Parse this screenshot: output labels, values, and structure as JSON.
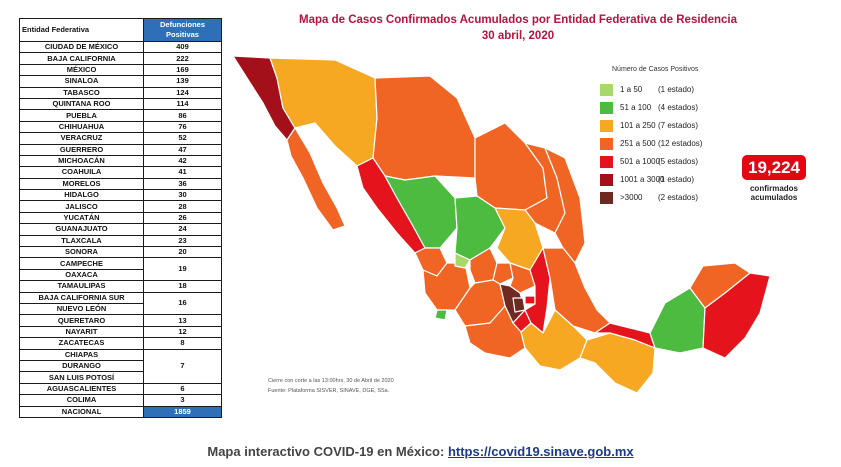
{
  "table": {
    "header_state": "Entidad Federativa",
    "header_value": "Defunciones Positivas",
    "rows": [
      {
        "state": "CIUDAD DE MÉXICO",
        "value": "409"
      },
      {
        "state": "BAJA CALIFORNIA",
        "value": "222"
      },
      {
        "state": "MÉXICO",
        "value": "169"
      },
      {
        "state": "SINALOA",
        "value": "139"
      },
      {
        "state": "TABASCO",
        "value": "124"
      },
      {
        "state": "QUINTANA ROO",
        "value": "114"
      },
      {
        "state": "PUEBLA",
        "value": "86"
      },
      {
        "state": "CHIHUAHUA",
        "value": "76"
      },
      {
        "state": "VERACRUZ",
        "value": "52"
      },
      {
        "state": "GUERRERO",
        "value": "47"
      },
      {
        "state": "MICHOACÁN",
        "value": "42"
      },
      {
        "state": "COAHUILA",
        "value": "41"
      },
      {
        "state": "MORELOS",
        "value": "36"
      },
      {
        "state": "HIDALGO",
        "value": "30"
      },
      {
        "state": "JALISCO",
        "value": "28"
      },
      {
        "state": "YUCATÁN",
        "value": "26"
      },
      {
        "state": "GUANAJUATO",
        "value": "24"
      },
      {
        "state": "TLAXCALA",
        "value": "23"
      },
      {
        "state": "SONORA",
        "value": "20"
      }
    ],
    "group_campeche": {
      "states": [
        "CAMPECHE",
        "OAXACA"
      ],
      "value": "19"
    },
    "row_tamaulipas": {
      "state": "TAMAULIPAS",
      "value": "18"
    },
    "group_bcs": {
      "states": [
        "BAJA CALIFORNIA SUR",
        "NUEVO LEÓN"
      ],
      "value": "16"
    },
    "row_queretaro": {
      "state": "QUERETARO",
      "value": "13"
    },
    "row_nayarit": {
      "state": "NAYARIT",
      "value": "12"
    },
    "row_zacatecas": {
      "state": "ZACATECAS",
      "value": "8"
    },
    "group_chiapas": {
      "states": [
        "CHIAPAS",
        "DURANGO",
        "SAN LUIS POTOSÍ"
      ],
      "value": "7"
    },
    "row_aguascalientes": {
      "state": "AGUASCALIENTES",
      "value": "6"
    },
    "row_colima": {
      "state": "COLIMA",
      "value": "3"
    },
    "total": {
      "state": "NACIONAL",
      "value": "1859"
    }
  },
  "map": {
    "title_line1": "Mapa de Casos Confirmados Acumulados por Entidad Federativa de Residencia",
    "title_line2": "30 abril, 2020"
  },
  "legend": {
    "title": "Número de Casos Positivos",
    "items": [
      {
        "range": "1 a 50",
        "count": "(1 estado)",
        "color": "#a8d86b"
      },
      {
        "range": "51 a 100",
        "count": "(4 estados)",
        "color": "#4cbb3f"
      },
      {
        "range": "101 a 250",
        "count": "(7 estados)",
        "color": "#f7a823"
      },
      {
        "range": "251 a 500",
        "count": "(12 estados)",
        "color": "#f06424"
      },
      {
        "range": "501 a 1000",
        "count": "(5 estados)",
        "color": "#e5141c"
      },
      {
        "range": "1001 a 3000",
        "count": "(1 estado)",
        "color": "#a3101a"
      },
      {
        "range": ">3000",
        "count": "(2 estados)",
        "color": "#6e2a20"
      }
    ]
  },
  "summary": {
    "total": "19,224",
    "caption1": "confirmados",
    "caption2": "acumulados"
  },
  "notes": {
    "cut": "Cierre con corte a las 13:00hrs, 30 de Abril de 2020",
    "source": "Fuente: Plataforma SISVER, SINAVE, DGE, SSa."
  },
  "footer": {
    "label": "Mapa interactivo COVID-19 en México: ",
    "link": "https://covid19.sinave.gob.mx"
  }
}
